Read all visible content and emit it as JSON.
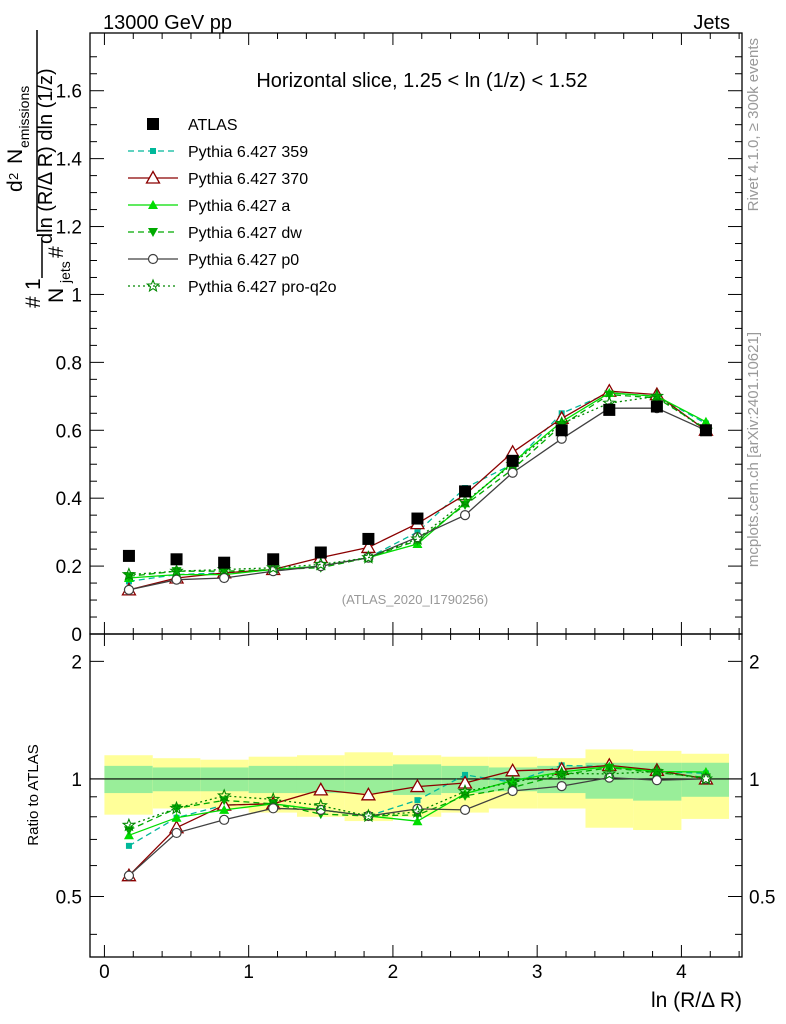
{
  "header": {
    "left": "13000 GeV pp",
    "right": "Jets"
  },
  "side_labels": {
    "rivet": "Rivet 4.1.0, ≥ 300k events",
    "mcplots": "mcplots.cern.ch [arXiv:2401.10621]"
  },
  "watermark": "(ATLAS_2020_I1790256)",
  "colors": {
    "atlas": "#000000",
    "p359": "#00b89a",
    "p370": "#8b0000",
    "pa": "#00dd00",
    "pdw": "#00aa00",
    "pp0": "#404040",
    "pq2o": "#008800",
    "band_yellow": "#ffff99",
    "band_green": "#99ee99"
  },
  "chart_data": {
    "type": "line",
    "title": "Horizontal slice, 1.25 < ln (1/z) < 1.52",
    "xlabel": "ln (R/Δ R)",
    "ylabel": {
      "frac_num": "1",
      "frac_den": "N",
      "frac_den_sub": "jets",
      "num_sup": "2",
      "num_d": "d",
      "num_N": "N",
      "num_sub": "emissions",
      "den_text": "dln (R/Δ R) dln (1/z)"
    },
    "ratio_ylabel": "Ratio to ATLAS",
    "xlim": [
      -0.1,
      4.42
    ],
    "ylim_main": [
      0,
      1.77
    ],
    "ylim_ratio": [
      0.35,
      2.35
    ],
    "xticks": [
      "0",
      "1",
      "2",
      "3",
      "4"
    ],
    "xtick_values": [
      0,
      1,
      2,
      3,
      4
    ],
    "yticks_main": [
      "0",
      "0.2",
      "0.4",
      "0.6",
      "0.8",
      "1",
      "1.2",
      "1.4",
      "1.6"
    ],
    "ytick_values_main": [
      0,
      0.2,
      0.4,
      0.6,
      0.8,
      1.0,
      1.2,
      1.4,
      1.6
    ],
    "yticks_ratio": [
      "0.5",
      "1",
      "2"
    ],
    "ytick_values_ratio": [
      0.5,
      1,
      2
    ],
    "x": [
      0.17,
      0.5,
      0.83,
      1.17,
      1.5,
      1.83,
      2.17,
      2.5,
      2.83,
      3.17,
      3.5,
      3.83,
      4.17
    ],
    "bin_edges": [
      0,
      0.335,
      0.665,
      1.0,
      1.335,
      1.665,
      2.0,
      2.335,
      2.665,
      3.0,
      3.335,
      3.665,
      4.0,
      4.33
    ],
    "atlas": {
      "name": "ATLAS",
      "values": [
        0.23,
        0.22,
        0.21,
        0.22,
        0.24,
        0.28,
        0.34,
        0.42,
        0.51,
        0.6,
        0.66,
        0.67,
        0.6
      ]
    },
    "band_green": {
      "lo": [
        0.92,
        0.93,
        0.93,
        0.92,
        0.92,
        0.92,
        0.91,
        0.92,
        0.93,
        0.92,
        0.89,
        0.88,
        0.9
      ],
      "hi": [
        1.08,
        1.07,
        1.07,
        1.08,
        1.08,
        1.08,
        1.09,
        1.08,
        1.07,
        1.08,
        1.1,
        1.1,
        1.1
      ]
    },
    "band_yellow": {
      "lo": [
        0.81,
        0.84,
        0.84,
        0.82,
        0.8,
        0.78,
        0.8,
        0.82,
        0.84,
        0.84,
        0.75,
        0.74,
        0.79
      ],
      "hi": [
        1.15,
        1.13,
        1.12,
        1.14,
        1.15,
        1.17,
        1.15,
        1.14,
        1.14,
        1.13,
        1.19,
        1.18,
        1.16
      ]
    },
    "series": [
      {
        "name": "Pythia 6.427 359",
        "color_key": "p359",
        "dash": "6,4",
        "marker": "smallsquare",
        "values": [
          0.155,
          0.175,
          0.18,
          0.19,
          0.2,
          0.225,
          0.3,
          0.43,
          0.5,
          0.65,
          0.71,
          0.7,
          0.62
        ]
      },
      {
        "name": "Pythia 6.427 370",
        "color_key": "p370",
        "dash": "",
        "marker": "opentriangle",
        "values": [
          0.13,
          0.165,
          0.18,
          0.19,
          0.225,
          0.255,
          0.325,
          0.41,
          0.535,
          0.635,
          0.715,
          0.705,
          0.6
        ]
      },
      {
        "name": "Pythia 6.427 a",
        "color_key": "pa",
        "dash": "",
        "marker": "triangle",
        "values": [
          0.165,
          0.175,
          0.175,
          0.19,
          0.2,
          0.225,
          0.265,
          0.385,
          0.505,
          0.625,
          0.71,
          0.7,
          0.625
        ]
      },
      {
        "name": "Pythia 6.427 dw",
        "color_key": "pdw",
        "dash": "6,4",
        "marker": "invtriangle",
        "values": [
          0.17,
          0.185,
          0.185,
          0.19,
          0.195,
          0.225,
          0.275,
          0.38,
          0.485,
          0.615,
          0.705,
          0.695,
          0.605
        ]
      },
      {
        "name": "Pythia 6.427 p0",
        "color_key": "pp0",
        "dash": "",
        "marker": "opencircle",
        "values": [
          0.13,
          0.16,
          0.165,
          0.185,
          0.2,
          0.225,
          0.285,
          0.35,
          0.475,
          0.575,
          0.665,
          0.665,
          0.6
        ]
      },
      {
        "name": "Pythia 6.427 pro-q2o",
        "color_key": "pq2o",
        "dash": "2,3",
        "marker": "star",
        "values": [
          0.175,
          0.185,
          0.19,
          0.195,
          0.205,
          0.225,
          0.28,
          0.39,
          0.5,
          0.62,
          0.68,
          0.7,
          0.6
        ]
      }
    ]
  }
}
